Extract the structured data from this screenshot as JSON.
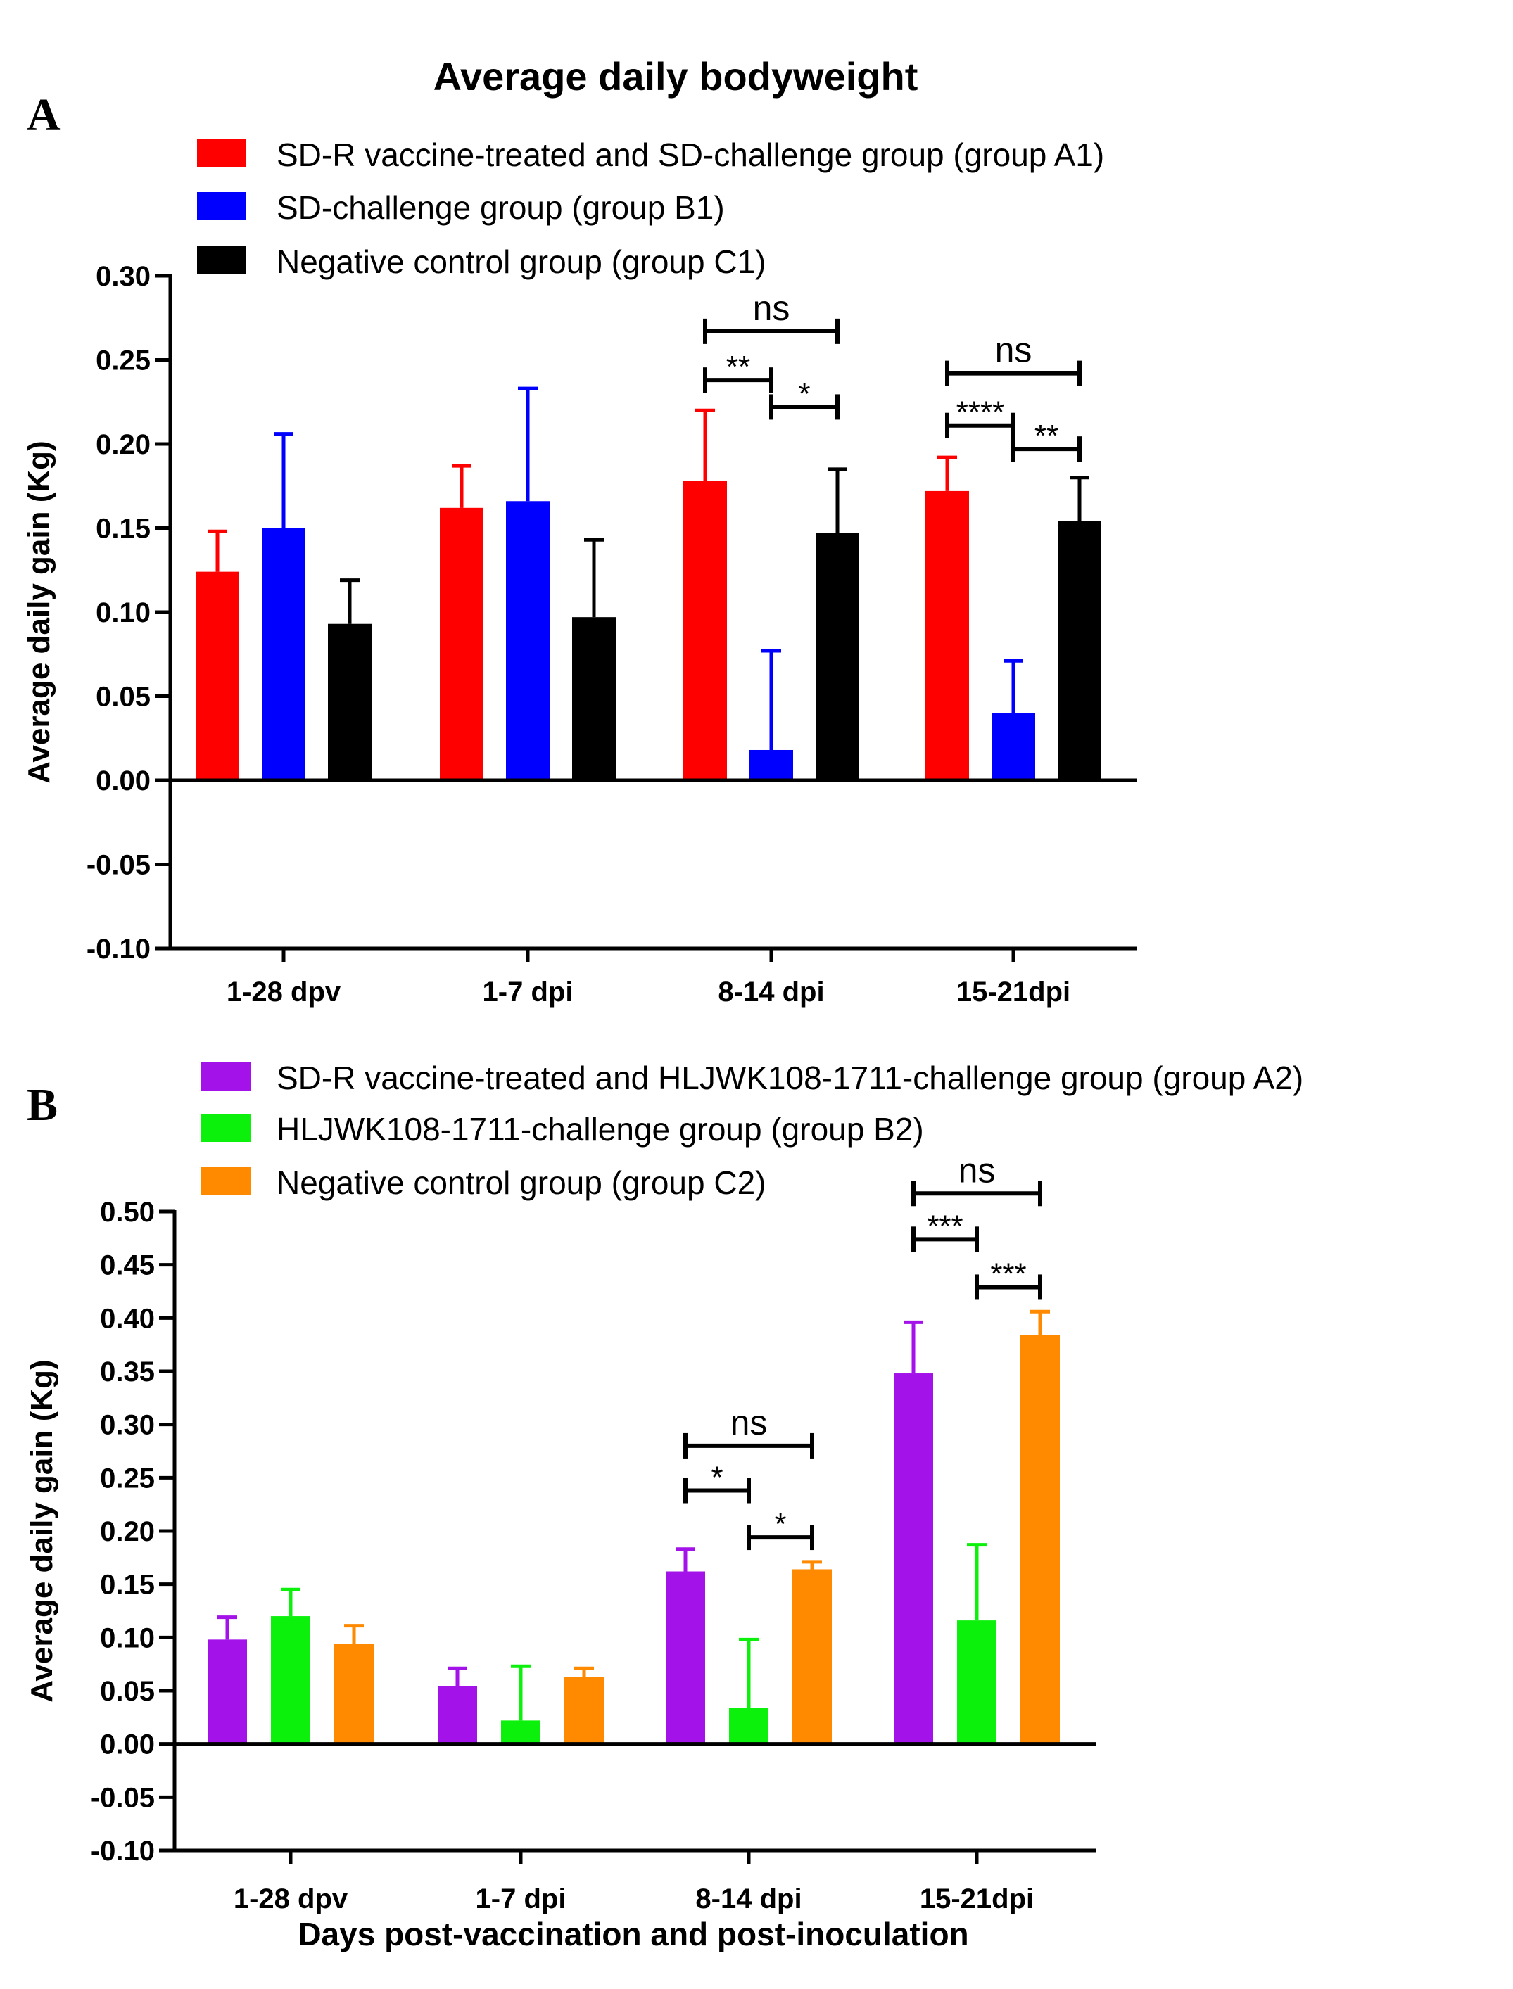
{
  "title": "Average daily bodyweight",
  "x_axis_label": "Days post-vaccination and post-inoculation",
  "chart_data": [
    {
      "panel": "A",
      "type": "bar",
      "ylabel": "Average daily gain (Kg)",
      "ylim": [
        -0.1,
        0.3
      ],
      "yticks": [
        -0.1,
        -0.05,
        0.0,
        0.05,
        0.1,
        0.15,
        0.2,
        0.25,
        0.3
      ],
      "ytick_labels": [
        "-0.10",
        "-0.05",
        "0.00",
        "0.05",
        "0.10",
        "0.15",
        "0.20",
        "0.25",
        "0.30"
      ],
      "categories": [
        "1-28 dpv",
        "1-7 dpi",
        "8-14 dpi",
        "15-21dpi"
      ],
      "series": [
        {
          "name": "SD-R vaccine-treated and SD-challenge group (group A1)",
          "color": "#ff0000",
          "values": [
            0.124,
            0.162,
            0.178,
            0.172
          ],
          "errors": [
            0.024,
            0.025,
            0.042,
            0.02
          ]
        },
        {
          "name": "SD-challenge group  (group B1)",
          "color": "#0000ff",
          "values": [
            0.15,
            0.166,
            0.018,
            0.04
          ],
          "errors": [
            0.056,
            0.067,
            0.059,
            0.031
          ]
        },
        {
          "name": "Negative control group  (group C1)",
          "color": "#000000",
          "values": [
            0.093,
            0.097,
            0.147,
            0.154
          ],
          "errors": [
            0.026,
            0.046,
            0.038,
            0.026
          ]
        }
      ],
      "significance": [
        {
          "category": 2,
          "from": 0,
          "to": 2,
          "y": 0.267,
          "label": "ns"
        },
        {
          "category": 2,
          "from": 0,
          "to": 1,
          "y": 0.238,
          "label": "**"
        },
        {
          "category": 2,
          "from": 1,
          "to": 2,
          "y": 0.222,
          "label": "*"
        },
        {
          "category": 3,
          "from": 0,
          "to": 2,
          "y": 0.242,
          "label": "ns"
        },
        {
          "category": 3,
          "from": 0,
          "to": 1,
          "y": 0.211,
          "label": "****"
        },
        {
          "category": 3,
          "from": 1,
          "to": 2,
          "y": 0.197,
          "label": "**"
        }
      ]
    },
    {
      "panel": "B",
      "type": "bar",
      "ylabel": "Average daily gain (Kg)",
      "ylim": [
        -0.1,
        0.5
      ],
      "yticks": [
        -0.1,
        -0.05,
        0.0,
        0.05,
        0.1,
        0.15,
        0.2,
        0.25,
        0.3,
        0.35,
        0.4,
        0.45,
        0.5
      ],
      "ytick_labels": [
        "-0.10",
        "-0.05",
        "0.00",
        "0.05",
        "0.10",
        "0.15",
        "0.20",
        "0.25",
        "0.30",
        "0.35",
        "0.40",
        "0.45",
        "0.50"
      ],
      "categories": [
        "1-28 dpv",
        "1-7 dpi",
        "8-14 dpi",
        "15-21dpi"
      ],
      "series": [
        {
          "name": "SD-R vaccine-treated and HLJWK108-1711-challenge group (group A2)",
          "color": "#a312e8",
          "values": [
            0.098,
            0.054,
            0.162,
            0.348
          ],
          "errors": [
            0.021,
            0.017,
            0.021,
            0.048
          ]
        },
        {
          "name": "HLJWK108-1711-challenge group  (group B2)",
          "color": "#0cf10c",
          "values": [
            0.12,
            0.022,
            0.034,
            0.116
          ],
          "errors": [
            0.025,
            0.051,
            0.064,
            0.071
          ]
        },
        {
          "name": "Negative control group  (group C2)",
          "color": "#ff8a00",
          "values": [
            0.094,
            0.063,
            0.164,
            0.384
          ],
          "errors": [
            0.017,
            0.008,
            0.007,
            0.022
          ]
        }
      ],
      "significance": [
        {
          "category": 2,
          "from": 0,
          "to": 2,
          "y": 0.28,
          "label": "ns"
        },
        {
          "category": 2,
          "from": 0,
          "to": 1,
          "y": 0.238,
          "label": "*"
        },
        {
          "category": 2,
          "from": 1,
          "to": 2,
          "y": 0.194,
          "label": "*"
        },
        {
          "category": 3,
          "from": 0,
          "to": 2,
          "y": 0.517,
          "label": "ns"
        },
        {
          "category": 3,
          "from": 0,
          "to": 1,
          "y": 0.474,
          "label": "***"
        },
        {
          "category": 3,
          "from": 1,
          "to": 2,
          "y": 0.429,
          "label": "***"
        }
      ]
    }
  ]
}
